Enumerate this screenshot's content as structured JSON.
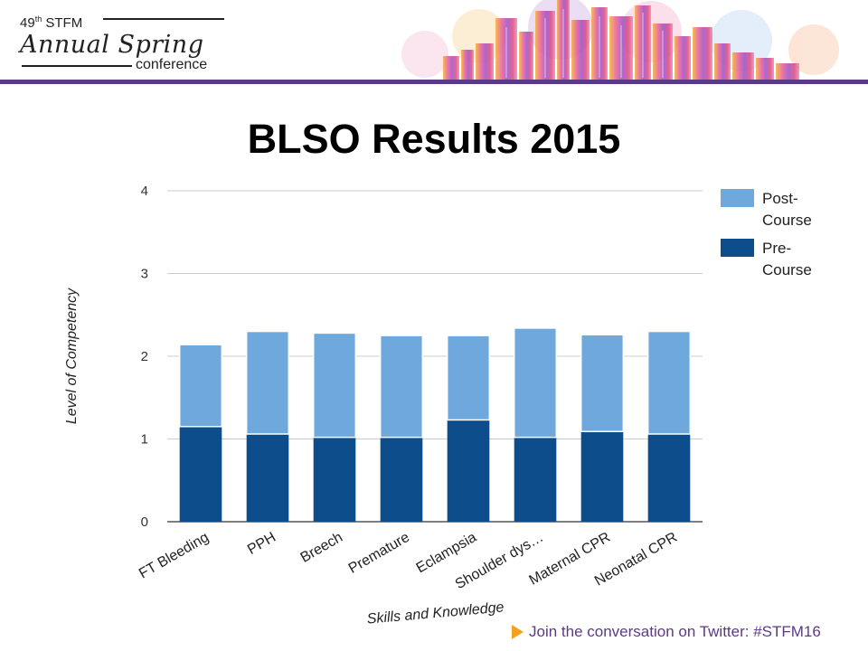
{
  "header": {
    "logo": {
      "line1_main": "49",
      "line1_sup": "th",
      "line1_rest": " STFM",
      "script": "Annual Spring",
      "bottom": "conference"
    },
    "accent_color": "#5b3a86"
  },
  "slide": {
    "title": "BLSO Results 2015"
  },
  "footer": {
    "icon": "play-icon",
    "text": "Join the conversation on Twitter: #STFM16"
  },
  "chart_data": {
    "type": "bar",
    "stacked": true,
    "categories": [
      "FT Bleeding",
      "PPH",
      "Breech",
      "Premature",
      "Eclampsia",
      "Shoulder dys…",
      "Maternal CPR",
      "Neonatal CPR"
    ],
    "series": [
      {
        "name": "Pre-Course",
        "values": [
          1.15,
          1.06,
          1.02,
          1.02,
          1.23,
          1.02,
          1.09,
          1.06
        ],
        "color": "#0d4d8c"
      },
      {
        "name": "Post-Course",
        "values": [
          0.99,
          1.24,
          1.26,
          1.23,
          1.02,
          1.32,
          1.17,
          1.24
        ],
        "color": "#6fa8dc"
      }
    ],
    "legend_order": [
      "Post-Course",
      "Pre-Course"
    ],
    "legend_labels": [
      [
        "Post-",
        "Course"
      ],
      [
        "Pre-",
        "Course"
      ]
    ],
    "ylim": [
      0,
      4
    ],
    "yticks": [
      "0",
      "1",
      "2",
      "3",
      "4"
    ],
    "xlabel": "Skills and Knowledge",
    "ylabel": "Level of Competency",
    "legend_position": "right",
    "grid": true
  }
}
